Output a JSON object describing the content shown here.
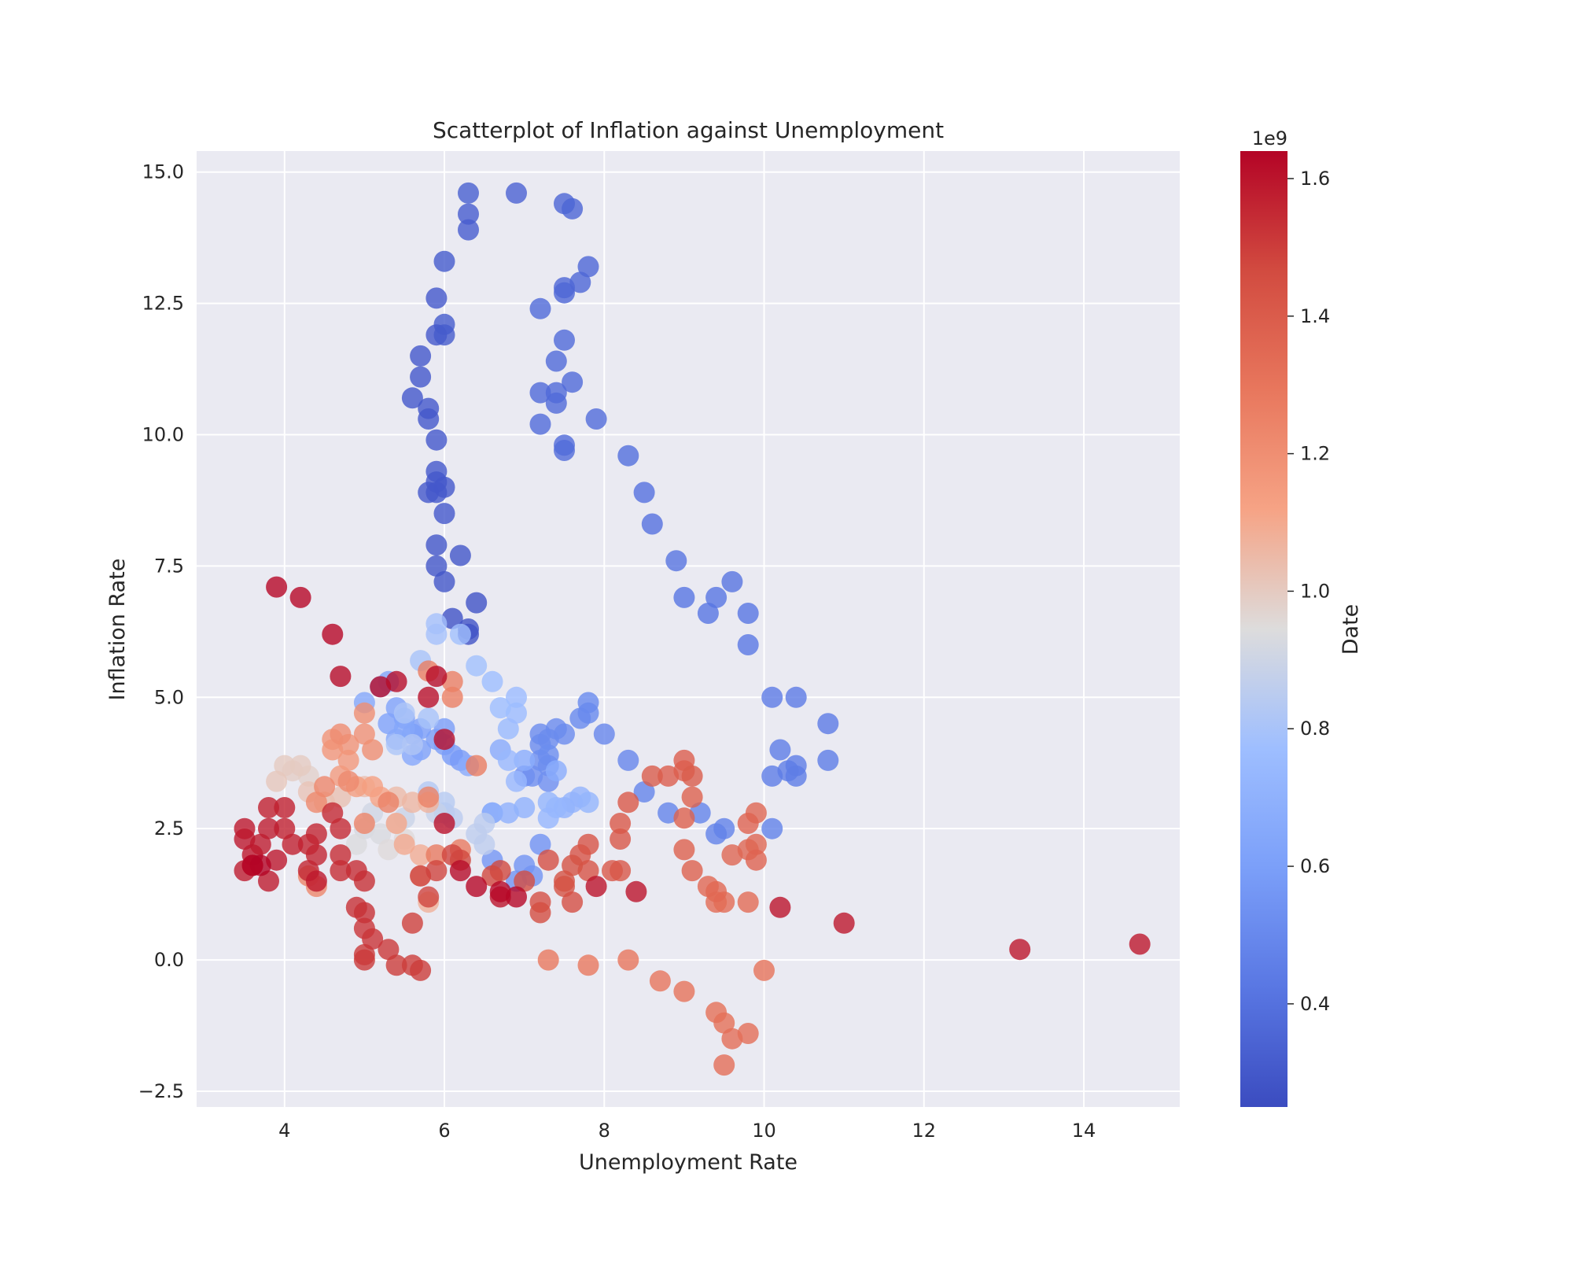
{
  "chart_data": {
    "type": "scatter",
    "title": "Scatterplot of Inflation against Unemployment",
    "xlabel": "Unemployment Rate",
    "ylabel": "Inflation Rate",
    "xlim": [
      2.9,
      15.2
    ],
    "ylim": [
      -2.8,
      15.4
    ],
    "xticks": [
      4,
      6,
      8,
      10,
      12,
      14
    ],
    "yticks": [
      -2.5,
      0.0,
      2.5,
      5.0,
      7.5,
      10.0,
      12.5,
      15.0
    ],
    "xtick_labels": [
      "4",
      "6",
      "8",
      "10",
      "12",
      "14"
    ],
    "ytick_labels": [
      "−2.5",
      "0.0",
      "2.5",
      "5.0",
      "7.5",
      "10.0",
      "12.5",
      "15.0"
    ],
    "grid": true,
    "colormap": "coolwarm",
    "point_alpha": 0.8,
    "colorbar": {
      "label": "Date",
      "offset_text": "1e9",
      "range": [
        0.25,
        1.64
      ],
      "ticks": [
        0.4,
        0.6,
        0.8,
        1.0,
        1.2,
        1.4,
        1.6
      ],
      "tick_labels": [
        "0.4",
        "0.6",
        "0.8",
        "1.0",
        "1.2",
        "1.4",
        "1.6"
      ]
    },
    "points": [
      [
        6.3,
        14.6,
        0.33
      ],
      [
        6.9,
        14.6,
        0.34
      ],
      [
        7.5,
        14.4,
        0.35
      ],
      [
        7.6,
        14.3,
        0.35
      ],
      [
        6.3,
        14.2,
        0.32
      ],
      [
        6.3,
        13.9,
        0.32
      ],
      [
        6.0,
        13.3,
        0.31
      ],
      [
        7.8,
        13.2,
        0.36
      ],
      [
        7.7,
        12.9,
        0.36
      ],
      [
        7.5,
        12.8,
        0.36
      ],
      [
        7.5,
        12.7,
        0.36
      ],
      [
        5.9,
        12.6,
        0.3
      ],
      [
        7.2,
        12.4,
        0.37
      ],
      [
        6.0,
        12.1,
        0.31
      ],
      [
        5.9,
        11.9,
        0.3
      ],
      [
        6.0,
        11.9,
        0.31
      ],
      [
        7.5,
        11.8,
        0.37
      ],
      [
        5.7,
        11.5,
        0.3
      ],
      [
        7.4,
        11.4,
        0.37
      ],
      [
        5.7,
        11.1,
        0.3
      ],
      [
        7.6,
        11.0,
        0.37
      ],
      [
        7.4,
        10.8,
        0.37
      ],
      [
        7.2,
        10.8,
        0.37
      ],
      [
        5.6,
        10.7,
        0.3
      ],
      [
        7.4,
        10.6,
        0.37
      ],
      [
        5.8,
        10.5,
        0.3
      ],
      [
        5.8,
        10.3,
        0.3
      ],
      [
        7.9,
        10.3,
        0.38
      ],
      [
        7.2,
        10.2,
        0.38
      ],
      [
        5.9,
        9.9,
        0.3
      ],
      [
        7.5,
        9.8,
        0.38
      ],
      [
        7.5,
        9.7,
        0.38
      ],
      [
        8.3,
        9.6,
        0.39
      ],
      [
        5.9,
        9.3,
        0.3
      ],
      [
        5.9,
        9.1,
        0.3
      ],
      [
        5.8,
        8.9,
        0.3
      ],
      [
        6.0,
        9.0,
        0.3
      ],
      [
        5.9,
        8.9,
        0.3
      ],
      [
        8.5,
        8.9,
        0.4
      ],
      [
        6.0,
        8.5,
        0.3
      ],
      [
        8.6,
        8.3,
        0.4
      ],
      [
        5.9,
        7.9,
        0.29
      ],
      [
        6.2,
        7.7,
        0.29
      ],
      [
        8.9,
        7.6,
        0.41
      ],
      [
        5.9,
        7.5,
        0.29
      ],
      [
        9.6,
        7.2,
        0.41
      ],
      [
        6.0,
        7.2,
        0.29
      ],
      [
        9.0,
        6.9,
        0.42
      ],
      [
        9.4,
        6.9,
        0.42
      ],
      [
        6.4,
        6.8,
        0.28
      ],
      [
        9.3,
        6.6,
        0.42
      ],
      [
        9.8,
        6.6,
        0.42
      ],
      [
        6.1,
        6.5,
        0.28
      ],
      [
        6.3,
        6.3,
        0.28
      ],
      [
        6.3,
        6.2,
        0.28
      ],
      [
        9.8,
        6.0,
        0.43
      ],
      [
        10.4,
        5.0,
        0.44
      ],
      [
        10.1,
        5.0,
        0.44
      ],
      [
        10.8,
        4.5,
        0.44
      ],
      [
        10.2,
        4.0,
        0.45
      ],
      [
        10.8,
        3.8,
        0.45
      ],
      [
        10.4,
        3.7,
        0.45
      ],
      [
        10.1,
        3.5,
        0.45
      ],
      [
        10.3,
        3.6,
        0.45
      ],
      [
        10.4,
        3.5,
        0.45
      ],
      [
        10.1,
        2.5,
        0.47
      ],
      [
        9.5,
        2.5,
        0.47
      ],
      [
        9.4,
        2.4,
        0.47
      ],
      [
        8.8,
        2.8,
        0.48
      ],
      [
        9.2,
        2.8,
        0.48
      ],
      [
        8.5,
        3.2,
        0.48
      ],
      [
        8.3,
        3.8,
        0.49
      ],
      [
        8.0,
        4.3,
        0.49
      ],
      [
        7.8,
        4.9,
        0.5
      ],
      [
        7.8,
        4.7,
        0.5
      ],
      [
        7.7,
        4.6,
        0.5
      ],
      [
        7.5,
        4.3,
        0.51
      ],
      [
        7.4,
        4.4,
        0.51
      ],
      [
        7.2,
        4.3,
        0.51
      ],
      [
        7.3,
        4.2,
        0.51
      ],
      [
        7.2,
        4.1,
        0.51
      ],
      [
        7.3,
        3.9,
        0.52
      ],
      [
        7.2,
        3.8,
        0.52
      ],
      [
        7.3,
        3.7,
        0.52
      ],
      [
        7.1,
        3.5,
        0.53
      ],
      [
        7.3,
        3.4,
        0.53
      ],
      [
        7.0,
        3.5,
        0.53
      ],
      [
        7.2,
        2.2,
        0.54
      ],
      [
        7.0,
        1.8,
        0.55
      ],
      [
        7.1,
        1.6,
        0.55
      ],
      [
        6.9,
        1.5,
        0.55
      ],
      [
        6.6,
        1.9,
        0.56
      ],
      [
        6.6,
        2.8,
        0.57
      ],
      [
        6.2,
        3.8,
        0.58
      ],
      [
        6.1,
        3.9,
        0.58
      ],
      [
        6.0,
        4.1,
        0.59
      ],
      [
        6.0,
        4.4,
        0.59
      ],
      [
        5.9,
        4.2,
        0.59
      ],
      [
        5.7,
        4.4,
        0.6
      ],
      [
        5.6,
        4.3,
        0.6
      ],
      [
        5.7,
        4.0,
        0.61
      ],
      [
        5.5,
        4.6,
        0.61
      ],
      [
        5.4,
        4.8,
        0.62
      ],
      [
        5.3,
        4.5,
        0.62
      ],
      [
        5.2,
        5.2,
        0.63
      ],
      [
        5.3,
        5.3,
        0.63
      ],
      [
        5.0,
        4.9,
        0.64
      ],
      [
        5.4,
        4.2,
        0.64
      ],
      [
        5.5,
        4.4,
        0.64
      ],
      [
        5.6,
        3.9,
        0.65
      ],
      [
        6.3,
        3.7,
        0.66
      ],
      [
        6.7,
        4.0,
        0.66
      ],
      [
        7.0,
        3.8,
        0.67
      ],
      [
        7.4,
        3.6,
        0.67
      ],
      [
        6.6,
        2.8,
        0.69
      ],
      [
        6.8,
        2.8,
        0.69
      ],
      [
        7.0,
        2.9,
        0.7
      ],
      [
        7.5,
        2.9,
        0.7
      ],
      [
        7.6,
        3.0,
        0.71
      ],
      [
        7.7,
        3.1,
        0.71
      ],
      [
        7.8,
        3.0,
        0.72
      ],
      [
        7.3,
        3.0,
        0.72
      ],
      [
        7.3,
        2.7,
        0.73
      ],
      [
        7.4,
        2.9,
        0.73
      ],
      [
        6.9,
        3.4,
        0.74
      ],
      [
        6.8,
        3.8,
        0.74
      ],
      [
        6.8,
        4.4,
        0.75
      ],
      [
        6.9,
        4.7,
        0.76
      ],
      [
        6.9,
        5.0,
        0.76
      ],
      [
        6.7,
        4.8,
        0.77
      ],
      [
        6.6,
        5.3,
        0.77
      ],
      [
        6.4,
        5.6,
        0.78
      ],
      [
        6.2,
        6.2,
        0.78
      ],
      [
        5.9,
        6.4,
        0.79
      ],
      [
        5.9,
        6.2,
        0.79
      ],
      [
        5.7,
        5.7,
        0.8
      ],
      [
        5.8,
        4.6,
        0.8
      ],
      [
        5.5,
        4.7,
        0.81
      ],
      [
        5.4,
        4.1,
        0.81
      ],
      [
        5.6,
        4.1,
        0.82
      ],
      [
        5.8,
        3.2,
        0.83
      ],
      [
        6.0,
        3.0,
        0.84
      ],
      [
        6.0,
        2.8,
        0.84
      ],
      [
        6.1,
        2.7,
        0.85
      ],
      [
        6.5,
        2.6,
        0.85
      ],
      [
        6.4,
        2.4,
        0.86
      ],
      [
        6.5,
        2.2,
        0.86
      ],
      [
        5.9,
        2.8,
        0.88
      ],
      [
        5.5,
        2.7,
        0.89
      ],
      [
        5.4,
        2.6,
        0.9
      ],
      [
        5.1,
        2.8,
        0.91
      ],
      [
        5.0,
        2.5,
        0.92
      ],
      [
        5.2,
        2.4,
        0.93
      ],
      [
        4.9,
        2.2,
        0.94
      ],
      [
        5.3,
        2.1,
        0.95
      ],
      [
        5.5,
        2.3,
        0.95
      ],
      [
        4.5,
        3.0,
        0.97
      ],
      [
        4.3,
        3.5,
        0.98
      ],
      [
        4.1,
        3.6,
        0.99
      ],
      [
        4.0,
        3.7,
        1.0
      ],
      [
        4.2,
        3.7,
        1.0
      ],
      [
        3.9,
        3.4,
        1.01
      ],
      [
        4.3,
        3.2,
        1.02
      ],
      [
        4.5,
        3.0,
        1.02
      ],
      [
        4.7,
        3.1,
        1.03
      ],
      [
        5.0,
        3.3,
        1.04
      ],
      [
        5.4,
        3.1,
        1.05
      ],
      [
        5.6,
        3.0,
        1.06
      ],
      [
        5.8,
        3.0,
        1.07
      ],
      [
        5.8,
        1.1,
        1.08
      ],
      [
        5.7,
        1.6,
        1.08
      ],
      [
        5.7,
        2.0,
        1.09
      ],
      [
        5.5,
        2.2,
        1.1
      ],
      [
        5.4,
        2.6,
        1.11
      ],
      [
        5.2,
        3.1,
        1.12
      ],
      [
        5.1,
        3.3,
        1.13
      ],
      [
        4.9,
        3.3,
        1.14
      ],
      [
        4.7,
        3.5,
        1.15
      ],
      [
        4.8,
        3.8,
        1.16
      ],
      [
        4.6,
        4.0,
        1.17
      ],
      [
        4.6,
        4.2,
        1.18
      ],
      [
        4.8,
        4.1,
        1.18
      ],
      [
        5.0,
        4.3,
        1.19
      ],
      [
        5.0,
        4.7,
        1.2
      ],
      [
        5.1,
        4.0,
        1.2
      ],
      [
        4.7,
        4.3,
        1.21
      ],
      [
        4.8,
        3.4,
        1.22
      ],
      [
        4.4,
        3.0,
        1.22
      ],
      [
        4.5,
        3.3,
        1.23
      ],
      [
        4.4,
        1.4,
        1.23
      ],
      [
        4.3,
        1.6,
        1.24
      ],
      [
        5.0,
        2.6,
        1.24
      ],
      [
        5.3,
        3.0,
        1.25
      ],
      [
        5.8,
        3.1,
        1.25
      ],
      [
        6.1,
        5.0,
        1.26
      ],
      [
        6.1,
        5.3,
        1.26
      ],
      [
        5.8,
        5.5,
        1.27
      ],
      [
        6.4,
        3.7,
        1.27
      ],
      [
        6.2,
        2.1,
        1.28
      ],
      [
        5.9,
        2.0,
        1.28
      ],
      [
        7.3,
        -0.0,
        1.29
      ],
      [
        7.8,
        -0.1,
        1.29
      ],
      [
        8.3,
        0.0,
        1.3
      ],
      [
        8.7,
        -0.4,
        1.3
      ],
      [
        9.0,
        -0.6,
        1.31
      ],
      [
        10.0,
        -0.2,
        1.31
      ],
      [
        9.4,
        -1.0,
        1.32
      ],
      [
        9.5,
        -1.2,
        1.32
      ],
      [
        9.6,
        -1.5,
        1.33
      ],
      [
        9.8,
        -1.4,
        1.33
      ],
      [
        9.5,
        -2.0,
        1.33
      ],
      [
        9.4,
        1.1,
        1.34
      ],
      [
        9.5,
        1.1,
        1.34
      ],
      [
        9.8,
        1.1,
        1.34
      ],
      [
        9.4,
        1.3,
        1.35
      ],
      [
        9.3,
        1.4,
        1.35
      ],
      [
        9.6,
        2.0,
        1.36
      ],
      [
        9.8,
        2.1,
        1.36
      ],
      [
        9.9,
        2.2,
        1.36
      ],
      [
        9.9,
        2.8,
        1.36
      ],
      [
        9.8,
        2.6,
        1.37
      ],
      [
        9.9,
        1.9,
        1.37
      ],
      [
        9.1,
        1.7,
        1.38
      ],
      [
        9.1,
        3.1,
        1.38
      ],
      [
        9.0,
        2.7,
        1.38
      ],
      [
        9.0,
        2.1,
        1.38
      ],
      [
        9.0,
        3.6,
        1.39
      ],
      [
        9.0,
        3.8,
        1.39
      ],
      [
        8.8,
        3.5,
        1.39
      ],
      [
        8.6,
        3.5,
        1.4
      ],
      [
        9.1,
        3.5,
        1.4
      ],
      [
        8.3,
        3.0,
        1.41
      ],
      [
        8.2,
        2.6,
        1.41
      ],
      [
        8.2,
        2.3,
        1.42
      ],
      [
        8.1,
        1.7,
        1.42
      ],
      [
        8.2,
        1.7,
        1.42
      ],
      [
        7.8,
        1.7,
        1.43
      ],
      [
        7.8,
        2.2,
        1.43
      ],
      [
        7.7,
        2.0,
        1.43
      ],
      [
        7.6,
        1.8,
        1.44
      ],
      [
        7.5,
        1.5,
        1.44
      ],
      [
        7.5,
        1.4,
        1.44
      ],
      [
        7.6,
        1.1,
        1.45
      ],
      [
        7.3,
        1.9,
        1.45
      ],
      [
        7.2,
        1.1,
        1.45
      ],
      [
        7.2,
        0.9,
        1.46
      ],
      [
        7.0,
        1.5,
        1.46
      ],
      [
        6.7,
        1.7,
        1.47
      ],
      [
        6.6,
        1.6,
        1.47
      ],
      [
        6.2,
        1.9,
        1.47
      ],
      [
        6.1,
        2.0,
        1.48
      ],
      [
        5.9,
        1.7,
        1.48
      ],
      [
        5.8,
        1.2,
        1.48
      ],
      [
        5.7,
        1.6,
        1.49
      ],
      [
        5.6,
        0.7,
        1.49
      ],
      [
        5.7,
        -0.2,
        1.5
      ],
      [
        5.6,
        -0.1,
        1.5
      ],
      [
        5.4,
        -0.1,
        1.5
      ],
      [
        5.3,
        0.2,
        1.51
      ],
      [
        5.0,
        0.0,
        1.51
      ],
      [
        5.0,
        0.1,
        1.51
      ],
      [
        5.1,
        0.4,
        1.52
      ],
      [
        5.0,
        0.6,
        1.52
      ],
      [
        5.0,
        0.9,
        1.53
      ],
      [
        4.9,
        1.0,
        1.53
      ],
      [
        5.0,
        1.5,
        1.53
      ],
      [
        4.9,
        1.7,
        1.54
      ],
      [
        4.7,
        1.7,
        1.54
      ],
      [
        4.7,
        2.0,
        1.54
      ],
      [
        4.7,
        2.5,
        1.55
      ],
      [
        4.6,
        2.8,
        1.55
      ],
      [
        4.4,
        2.4,
        1.56
      ],
      [
        4.4,
        2.0,
        1.56
      ],
      [
        4.3,
        2.2,
        1.56
      ],
      [
        4.3,
        1.7,
        1.56
      ],
      [
        4.1,
        2.2,
        1.57
      ],
      [
        4.0,
        2.5,
        1.57
      ],
      [
        4.0,
        2.9,
        1.57
      ],
      [
        3.8,
        2.9,
        1.57
      ],
      [
        3.8,
        2.5,
        1.58
      ],
      [
        3.7,
        2.2,
        1.58
      ],
      [
        3.8,
        1.5,
        1.58
      ],
      [
        3.6,
        1.8,
        1.58
      ],
      [
        3.5,
        1.7,
        1.58
      ],
      [
        3.5,
        2.3,
        1.59
      ],
      [
        3.5,
        2.5,
        1.59
      ],
      [
        3.6,
        2.0,
        1.59
      ],
      [
        3.9,
        1.9,
        1.59
      ],
      [
        4.4,
        1.5,
        1.59
      ],
      [
        13.2,
        0.2,
        1.59
      ],
      [
        14.7,
        0.3,
        1.59
      ],
      [
        11.0,
        0.7,
        1.59
      ],
      [
        10.2,
        1.0,
        1.6
      ],
      [
        8.4,
        1.3,
        1.6
      ],
      [
        7.9,
        1.4,
        1.6
      ],
      [
        6.7,
        1.2,
        1.6
      ],
      [
        6.0,
        2.6,
        1.61
      ],
      [
        6.0,
        4.2,
        1.61
      ],
      [
        5.8,
        5.0,
        1.61
      ],
      [
        5.4,
        5.3,
        1.62
      ],
      [
        5.2,
        5.2,
        1.62
      ],
      [
        5.9,
        5.4,
        1.62
      ],
      [
        4.7,
        5.4,
        1.62
      ],
      [
        4.6,
        6.2,
        1.63
      ],
      [
        4.2,
        6.9,
        1.63
      ],
      [
        3.9,
        7.1,
        1.63
      ],
      [
        6.4,
        1.4,
        1.63
      ],
      [
        6.7,
        1.3,
        1.63
      ],
      [
        6.9,
        1.2,
        1.63
      ],
      [
        6.2,
        1.7,
        1.62
      ],
      [
        3.6,
        1.8,
        1.64
      ],
      [
        3.7,
        1.8,
        1.64
      ]
    ]
  }
}
